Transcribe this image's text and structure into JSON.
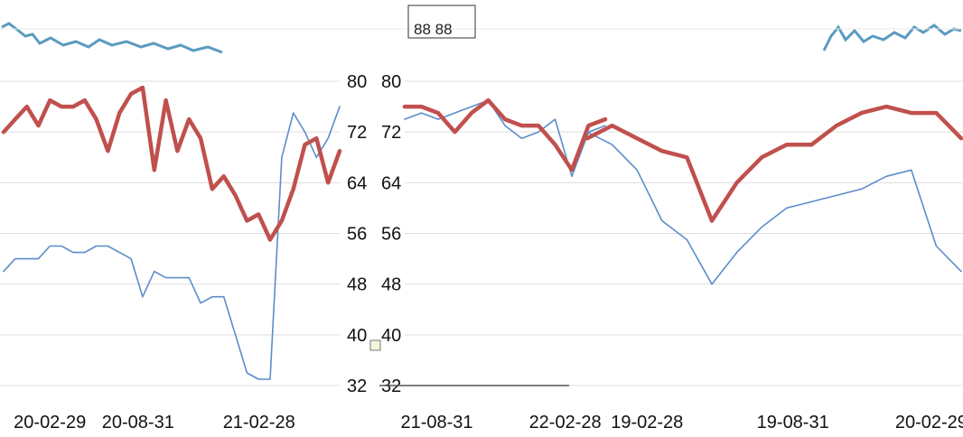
{
  "header": {
    "text": "88 88"
  },
  "colors": {
    "grid": "#dddddd",
    "red": "#c0504d",
    "blue": "#5b8dc9",
    "teal": "#5b9bbf"
  },
  "chart_data": [
    {
      "type": "line",
      "title": "",
      "xlabel": "",
      "ylabel": "",
      "ylim": [
        32,
        80
      ],
      "yticks": [
        80,
        72,
        64,
        56,
        48,
        40,
        32
      ],
      "xtick_labels": [
        "20-02-29",
        "20-08-31",
        "21-02-28"
      ],
      "x": [
        "20-02-29",
        "20-03-15",
        "20-03-31",
        "20-04-15",
        "20-04-30",
        "20-05-15",
        "20-05-31",
        "20-06-15",
        "20-06-30",
        "20-07-15",
        "20-07-31",
        "20-08-15",
        "20-08-31",
        "20-09-15",
        "20-09-30",
        "20-10-15",
        "20-10-31",
        "20-11-15",
        "20-11-30",
        "20-12-15",
        "20-12-31",
        "21-01-15",
        "21-01-31",
        "21-02-15",
        "21-02-28",
        "21-03-15",
        "21-03-31",
        "21-04-15",
        "21-04-30",
        "21-05-15"
      ],
      "series": [
        {
          "values": [
            72,
            74,
            76,
            73,
            77,
            76,
            76,
            77,
            74,
            69,
            75,
            78,
            79,
            66,
            77,
            69,
            74,
            71,
            63,
            65,
            62,
            58,
            59,
            55,
            58,
            63,
            70,
            71,
            64,
            69
          ]
        },
        {
          "values": [
            50,
            52,
            52,
            52,
            54,
            54,
            53,
            53,
            54,
            54,
            53,
            52,
            46,
            50,
            49,
            49,
            49,
            45,
            46,
            46,
            40,
            34,
            33,
            33,
            68,
            75,
            72,
            68,
            71,
            76
          ]
        }
      ]
    },
    {
      "type": "line",
      "title": "",
      "xlabel": "",
      "ylabel": "",
      "ylim": [
        32,
        80
      ],
      "yticks": [
        80,
        72,
        64,
        56,
        48,
        40,
        32
      ],
      "xtick_labels": [
        "21-08-31",
        "22-02-28"
      ],
      "x": [
        "21-05-31",
        "21-06-30",
        "21-07-31",
        "21-08-31",
        "21-09-30",
        "21-10-31",
        "21-11-30",
        "21-12-31",
        "22-01-31",
        "22-02-28",
        "22-03-31",
        "22-04-30",
        "22-05-31"
      ],
      "series": [
        {
          "values": [
            76,
            76,
            75,
            72,
            75,
            77,
            74,
            73,
            73,
            70,
            66,
            73,
            74
          ]
        },
        {
          "values": [
            74,
            75,
            74,
            75,
            76,
            77,
            73,
            71,
            72,
            74,
            65,
            72,
            73
          ]
        }
      ]
    },
    {
      "type": "line",
      "title": "",
      "xlabel": "",
      "ylabel": "",
      "ylim": [
        32,
        80
      ],
      "yticks": [],
      "xtick_labels": [
        "19-02-28",
        "19-08-31",
        "20-02-29"
      ],
      "x": [
        "18-12-31",
        "19-01-31",
        "19-02-28",
        "19-03-31",
        "19-04-30",
        "19-05-31",
        "19-06-30",
        "19-07-31",
        "19-08-31",
        "19-09-30",
        "19-10-31",
        "19-11-30",
        "19-12-31",
        "20-01-31",
        "20-02-29",
        "20-03-31"
      ],
      "series": [
        {
          "values": [
            71,
            73,
            71,
            69,
            68,
            58,
            64,
            68,
            70,
            70,
            73,
            75,
            76,
            75,
            75,
            71
          ]
        },
        {
          "values": [
            72,
            70,
            66,
            58,
            55,
            48,
            53,
            57,
            60,
            61,
            62,
            63,
            65,
            66,
            54,
            50
          ]
        }
      ]
    }
  ]
}
